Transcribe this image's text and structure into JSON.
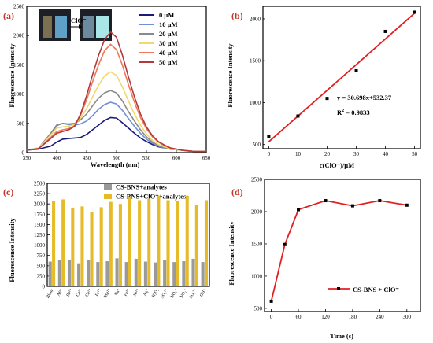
{
  "chart_data": [
    {
      "panel": "(a)",
      "type": "line",
      "xlabel": "Wavelength (nm)",
      "ylabel": "Fluorescence Intensity",
      "xlim": [
        350,
        650
      ],
      "ylim": [
        0,
        2500
      ],
      "xticks": [
        350,
        400,
        450,
        500,
        550,
        600,
        650
      ],
      "yticks": [
        0,
        500,
        1000,
        1500,
        2000,
        2500
      ],
      "legend_position": "top-right",
      "inset_arrow_label": "ClO⁻",
      "x": [
        350,
        370,
        390,
        400,
        410,
        420,
        430,
        440,
        450,
        460,
        470,
        480,
        490,
        500,
        510,
        520,
        530,
        540,
        550,
        560,
        570,
        580,
        590,
        600,
        610,
        620,
        630,
        640,
        650
      ],
      "series": [
        {
          "name": "0 μM",
          "color": "#1a1a7a",
          "values": [
            40,
            60,
            110,
            180,
            230,
            240,
            250,
            260,
            310,
            390,
            470,
            550,
            600,
            590,
            510,
            420,
            330,
            250,
            190,
            140,
            100,
            80,
            60,
            50,
            40,
            30,
            20,
            20,
            20
          ]
        },
        {
          "name": "10 μM",
          "color": "#6f8fd6",
          "values": [
            40,
            70,
            310,
            460,
            500,
            480,
            470,
            490,
            540,
            630,
            740,
            820,
            860,
            830,
            720,
            580,
            450,
            330,
            230,
            160,
            110,
            80,
            60,
            50,
            40,
            30,
            20,
            20,
            20
          ]
        },
        {
          "name": "20 μM",
          "color": "#8a8a8a",
          "values": [
            40,
            80,
            330,
            470,
            500,
            490,
            500,
            560,
            660,
            800,
            930,
            1020,
            1060,
            1020,
            880,
            700,
            540,
            390,
            270,
            180,
            120,
            90,
            60,
            50,
            40,
            30,
            20,
            20,
            20
          ]
        },
        {
          "name": "30 μM",
          "color": "#f2d96b",
          "values": [
            40,
            80,
            300,
            420,
            440,
            450,
            480,
            590,
            750,
            950,
            1150,
            1310,
            1380,
            1320,
            1120,
            880,
            660,
            470,
            320,
            210,
            140,
            100,
            70,
            50,
            40,
            30,
            20,
            20,
            20
          ]
        },
        {
          "name": "40 μM",
          "color": "#f0785a",
          "values": [
            40,
            70,
            260,
            360,
            390,
            410,
            460,
            640,
            900,
            1210,
            1500,
            1740,
            1850,
            1760,
            1490,
            1160,
            860,
            600,
            410,
            270,
            180,
            120,
            80,
            60,
            40,
            30,
            20,
            20,
            20
          ]
        },
        {
          "name": "50 μM",
          "color": "#b23a3a",
          "values": [
            40,
            70,
            240,
            330,
            360,
            390,
            450,
            660,
            970,
            1330,
            1660,
            1930,
            2060,
            1970,
            1660,
            1290,
            950,
            660,
            440,
            290,
            190,
            130,
            80,
            60,
            40,
            30,
            20,
            20,
            20
          ]
        }
      ]
    },
    {
      "panel": "(b)",
      "type": "scatter",
      "xlabel": "c(ClO⁻)/μM",
      "ylabel": "Fluorescence Intensity",
      "xlim": [
        -2,
        52
      ],
      "ylim": [
        450,
        2150
      ],
      "xticks": [
        0,
        10,
        20,
        30,
        40,
        50
      ],
      "yticks": [
        500,
        1000,
        1500,
        2000
      ],
      "x": [
        0,
        10,
        20,
        30,
        40,
        50
      ],
      "y": [
        600,
        840,
        1050,
        1380,
        1850,
        2080
      ],
      "fit": {
        "slope": 30.698,
        "intercept": 532.37,
        "color": "#e02020"
      },
      "equation": "y = 30.698x+532.37",
      "r2_prefix": "R",
      "r2_sup": "2",
      "r2_value": " = 0.9833"
    },
    {
      "panel": "(c)",
      "type": "bar",
      "ylabel": "Fluorescence Intensity",
      "ylim": [
        0,
        2500
      ],
      "yticks": [
        0,
        250,
        500,
        750,
        1000,
        1250,
        1500,
        1750,
        2000,
        2250,
        2500
      ],
      "legend_position": "top-left",
      "categories": [
        "Blank",
        "Al³⁺",
        "Ba²⁺",
        "Ca²⁺",
        "Cu²⁺",
        "Fe²⁺",
        "Mg²⁺",
        "Na⁺",
        "Fe³⁺",
        "Ni²⁺",
        "Ag⁺",
        "H₂O₂",
        "SO₄²⁻",
        "NO₃⁻",
        "NO₂⁻",
        "SO₃²⁻",
        "OH⁻"
      ],
      "series": [
        {
          "name": "CS-BNS+analytes",
          "color": "#9a9a9a",
          "values": [
            600,
            640,
            650,
            560,
            640,
            590,
            610,
            680,
            590,
            670,
            600,
            580,
            640,
            590,
            610,
            670,
            590
          ]
        },
        {
          "name": "CS-BNS+ClO⁻+analytes",
          "color": "#e6bb28",
          "values": [
            2080,
            2110,
            1910,
            1940,
            1810,
            1920,
            2050,
            2000,
            2180,
            2090,
            2120,
            2200,
            2090,
            2080,
            2200,
            1980,
            2090
          ]
        }
      ]
    },
    {
      "panel": "(d)",
      "type": "line",
      "xlabel": "Time (s)",
      "ylabel": "Fluorescence Intensity",
      "xlim": [
        -15,
        330
      ],
      "ylim": [
        450,
        2500
      ],
      "xticks": [
        0,
        60,
        120,
        180,
        240,
        300
      ],
      "yticks": [
        500,
        1000,
        1500,
        2000,
        2500
      ],
      "legend_position": "bottom-right",
      "series": [
        {
          "name": "CS-BNS + ClO⁻",
          "color": "#e02020",
          "x": [
            0,
            30,
            60,
            120,
            180,
            240,
            300
          ],
          "values": [
            610,
            1490,
            2030,
            2170,
            2090,
            2170,
            2100
          ]
        }
      ]
    }
  ]
}
